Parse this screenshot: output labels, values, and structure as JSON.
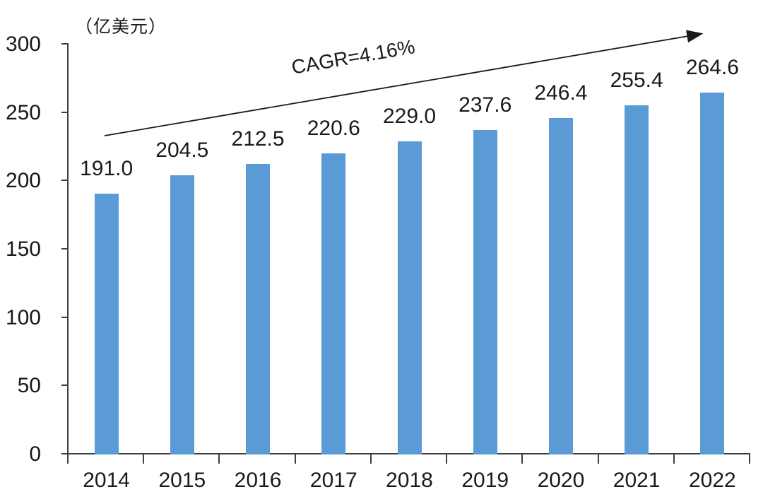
{
  "chart_data": {
    "type": "bar",
    "title": "",
    "unit_label": "（亿美元）",
    "annotation": "CAGR=4.16%",
    "categories": [
      "2014",
      "2015",
      "2016",
      "2017",
      "2018",
      "2019",
      "2020",
      "2021",
      "2022"
    ],
    "values": [
      191.0,
      204.5,
      212.5,
      220.6,
      229.0,
      237.6,
      246.4,
      255.4,
      264.6
    ],
    "value_labels": [
      "191.0",
      "204.5",
      "212.5",
      "220.6",
      "229.0",
      "237.6",
      "246.4",
      "255.4",
      "264.6"
    ],
    "xlabel": "",
    "ylabel": "",
    "y_ticks": [
      0,
      50,
      100,
      150,
      200,
      250,
      300
    ],
    "ylim": [
      0,
      300
    ],
    "grid": false,
    "legend": false,
    "colors": {
      "bar": "#5b9bd5",
      "axis": "#3f3f3f",
      "text": "#1a1a1a",
      "arrow": "#1a1a1a",
      "background": "#ffffff"
    }
  }
}
